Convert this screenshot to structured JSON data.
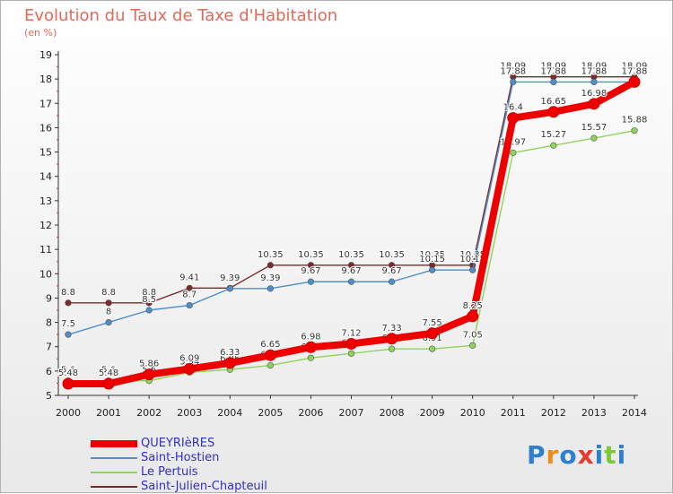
{
  "header": {
    "title": "Evolution du Taux de Taxe d'Habitation",
    "unit": "(en %)"
  },
  "logo": {
    "text": "Proxiti",
    "colors": [
      "#2f7fd1",
      "#f08a1c",
      "#2f7fd1",
      "#e23b2f",
      "#2f7fd1",
      "#7dc83a",
      "#2f7fd1"
    ]
  },
  "chart_data": {
    "type": "line",
    "x": [
      2000,
      2001,
      2002,
      2003,
      2004,
      2005,
      2006,
      2007,
      2008,
      2009,
      2010,
      2011,
      2012,
      2013,
      2014
    ],
    "ylim": [
      5,
      19
    ],
    "yticks": [
      5,
      6,
      7,
      8,
      9,
      10,
      11,
      12,
      13,
      14,
      15,
      16,
      17,
      18,
      19
    ],
    "grid": false,
    "legend": "bottom-left",
    "series": [
      {
        "name": "Saint-Julien-Chapteuil",
        "color": "#7a2a2a",
        "values": [
          8.8,
          8.8,
          8.8,
          9.41,
          9.41,
          10.35,
          10.35,
          10.35,
          10.35,
          10.35,
          10.35,
          18.09,
          18.09,
          18.09,
          18.09
        ],
        "labels": [
          "8.8",
          "8.8",
          "8.8",
          "9.41",
          "9.41",
          "10.35",
          "10.35",
          "10.35",
          "10.35",
          "10.35",
          "10.35",
          "18.09",
          "18.09",
          "18.09",
          "18.09"
        ]
      },
      {
        "name": "Saint-Hostien",
        "color": "#4f8ec9",
        "values": [
          7.5,
          8,
          8.5,
          8.7,
          9.39,
          9.39,
          9.67,
          9.67,
          9.67,
          10.15,
          10.15,
          17.88,
          17.88,
          17.88,
          17.88
        ],
        "labels": [
          "7.5",
          "8",
          "8.5",
          "8.7",
          "9.39",
          "9.39",
          "9.67",
          "9.67",
          "9.67",
          "10.15",
          "10.15",
          "17.88",
          "17.88",
          "17.88",
          "17.88"
        ]
      },
      {
        "name": "Le Pertuis",
        "color": "#8fd45a",
        "values": [
          5.6,
          5.6,
          5.6,
          5.94,
          6.06,
          6.23,
          6.54,
          6.72,
          6.91,
          6.91,
          7.05,
          14.97,
          15.27,
          15.57,
          15.88
        ],
        "labels": [
          "5.6",
          "5.6",
          "5.6",
          "5.94",
          "6.06",
          "6.23",
          "6.54",
          "6.72",
          "6.91",
          "6.91",
          "7.05",
          "14.97",
          "15.27",
          "15.57",
          "15.88"
        ]
      },
      {
        "name": "QUEYRIèRES",
        "color": "#ee0000",
        "values": [
          5.48,
          5.48,
          5.86,
          6.09,
          6.33,
          6.65,
          6.98,
          7.12,
          7.33,
          7.55,
          8.25,
          16.4,
          16.65,
          16.98,
          17.88
        ],
        "labels": [
          "5.48",
          "5.48",
          "5.86",
          "6.09",
          "6.33",
          "6.65",
          "6.98",
          "7.12",
          "7.33",
          "7.55",
          "8.25",
          "16.4",
          "16.65",
          "16.98",
          "17.88"
        ]
      }
    ],
    "legend_order": [
      3,
      1,
      2,
      0
    ]
  }
}
